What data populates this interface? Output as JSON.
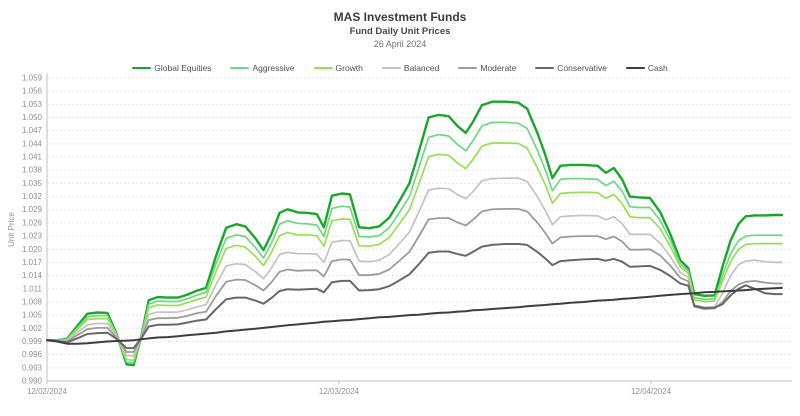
{
  "header": {
    "title": "MAS Investment Funds",
    "subtitle": "Fund Daily Unit Prices",
    "date": "26 April 2024"
  },
  "chart_data": {
    "type": "line",
    "title": "MAS Investment Funds",
    "subtitle": "Fund Daily Unit Prices",
    "date_label": "26 April 2024",
    "xlabel": "",
    "ylabel": "Unit Price",
    "x_unit": "calendar days since 12/02/2024",
    "x_range": [
      0,
      74
    ],
    "y_range": [
      0.99,
      1.059
    ],
    "y_tick_step": 0.003,
    "grid": "horizontal-dotted",
    "legend_position": "top-center",
    "x_ticks": [
      {
        "day": 0,
        "label": "12/02/2024"
      },
      {
        "day": 29,
        "label": "12/03/2024"
      },
      {
        "day": 60,
        "label": "12/04/2024"
      }
    ],
    "x": [
      0,
      1,
      2,
      3,
      4,
      5,
      6,
      6.9,
      7.9,
      8.6,
      9.4,
      10.1,
      11,
      12,
      13,
      13.9,
      14.8,
      15.8,
      16.8,
      17.8,
      18.8,
      19.7,
      20.7,
      21.5,
      22.3,
      23.1,
      23.9,
      24.9,
      25.8,
      26.8,
      27.5,
      28.3,
      29.3,
      30.1,
      31,
      32,
      33,
      34,
      35,
      36,
      36.9,
      37.9,
      38.9,
      39.9,
      40.8,
      41.6,
      42.3,
      43.2,
      44.2,
      45.5,
      46.8,
      47.7,
      48.7,
      49.5,
      50.2,
      51,
      52,
      53.3,
      54.7,
      55.5,
      56.3,
      57.1,
      57.9,
      58.8,
      59.9,
      60.9,
      61.9,
      62.9,
      63.7,
      64.3,
      65.3,
      66.3,
      67.1,
      67.9,
      68.7,
      69.4,
      70.3,
      71.3,
      72.3,
      73
    ],
    "series": [
      {
        "name": "Global Equities",
        "color": "#18a62c",
        "width": 2.4,
        "values": [
          0.9993,
          0.9993,
          0.9996,
          1.0025,
          1.0053,
          1.0056,
          1.0055,
          1.0008,
          0.9938,
          0.9936,
          1.0005,
          1.0084,
          1.0091,
          1.009,
          1.009,
          1.0096,
          1.0105,
          1.0112,
          1.0185,
          1.0249,
          1.0257,
          1.0252,
          1.0225,
          1.0198,
          1.0235,
          1.0283,
          1.0291,
          1.0284,
          1.0283,
          1.028,
          1.025,
          1.0322,
          1.0327,
          1.0325,
          1.025,
          1.0248,
          1.0252,
          1.0272,
          1.031,
          1.035,
          1.042,
          1.05,
          1.0506,
          1.0503,
          1.048,
          1.0465,
          1.049,
          1.0528,
          1.0536,
          1.0536,
          1.0534,
          1.052,
          1.0465,
          1.0415,
          1.0362,
          1.039,
          1.0392,
          1.0392,
          1.039,
          1.0374,
          1.0385,
          1.036,
          1.032,
          1.0318,
          1.0317,
          1.0285,
          1.0235,
          1.0175,
          1.0157,
          1.0098,
          1.0094,
          1.0095,
          1.016,
          1.022,
          1.0258,
          1.0275,
          1.0277,
          1.0277,
          1.0278,
          1.0278
        ]
      },
      {
        "name": "Aggressive",
        "color": "#70d884",
        "width": 1.7,
        "values": [
          0.9993,
          0.9993,
          0.9995,
          1.0021,
          1.0046,
          1.0049,
          1.0049,
          1.0006,
          0.9943,
          0.9942,
          1.0004,
          1.0075,
          1.0082,
          1.0081,
          1.0081,
          1.0087,
          1.0095,
          1.0102,
          1.0168,
          1.0225,
          1.0233,
          1.0229,
          1.0204,
          1.018,
          1.0214,
          1.0257,
          1.0265,
          1.0259,
          1.0258,
          1.0255,
          1.0229,
          1.0293,
          1.0298,
          1.0296,
          1.0229,
          1.0228,
          1.0231,
          1.0249,
          1.0284,
          1.032,
          1.0383,
          1.0455,
          1.0461,
          1.0458,
          1.0438,
          1.0424,
          1.0447,
          1.0481,
          1.0489,
          1.0489,
          1.0487,
          1.0475,
          1.0426,
          1.0381,
          1.0333,
          1.0359,
          1.0361,
          1.0361,
          1.0359,
          1.0345,
          1.0355,
          1.0333,
          1.0297,
          1.0295,
          1.0295,
          1.0266,
          1.0221,
          1.0167,
          1.0151,
          1.009,
          1.0086,
          1.0087,
          1.014,
          1.019,
          1.022,
          1.023,
          1.0232,
          1.0232,
          1.0232,
          1.0232
        ]
      },
      {
        "name": "Growth",
        "color": "#97e055",
        "width": 1.7,
        "values": [
          0.9993,
          0.9992,
          0.9994,
          1.0017,
          1.004,
          1.0042,
          1.0042,
          1.0005,
          0.9949,
          0.9947,
          1.0003,
          1.0067,
          1.0073,
          1.0072,
          1.0072,
          1.0078,
          1.0085,
          1.0091,
          1.015,
          1.0202,
          1.0209,
          1.0205,
          1.0184,
          1.0163,
          1.0193,
          1.0231,
          1.0238,
          1.0233,
          1.0233,
          1.0231,
          1.0207,
          1.0265,
          1.0269,
          1.0268,
          1.0208,
          1.0207,
          1.0211,
          1.0227,
          1.0258,
          1.029,
          1.0346,
          1.0411,
          1.0416,
          1.0414,
          1.0396,
          1.0384,
          1.0404,
          1.0435,
          1.0442,
          1.0442,
          1.0441,
          1.043,
          1.0386,
          1.0347,
          1.0305,
          1.0327,
          1.0329,
          1.033,
          1.0329,
          1.0316,
          1.0325,
          1.0305,
          1.0274,
          1.0272,
          1.0272,
          1.0247,
          1.0207,
          1.016,
          1.0145,
          1.0085,
          1.0081,
          1.0082,
          1.0128,
          1.0172,
          1.02,
          1.0211,
          1.0213,
          1.0213,
          1.0213,
          1.0213
        ]
      },
      {
        "name": "Balanced",
        "color": "#c3c3c3",
        "width": 1.7,
        "values": [
          0.9993,
          0.9992,
          0.9992,
          1.001,
          1.0028,
          1.0031,
          1.0031,
          1.0002,
          0.9958,
          0.9957,
          1.0001,
          1.0052,
          1.0057,
          1.0057,
          1.0057,
          1.0062,
          1.0068,
          1.0074,
          1.012,
          1.0162,
          1.0167,
          1.0165,
          1.0149,
          1.0133,
          1.0157,
          1.0188,
          1.0193,
          1.019,
          1.019,
          1.0189,
          1.017,
          1.0216,
          1.022,
          1.0219,
          1.0173,
          1.0172,
          1.0175,
          1.0188,
          1.0213,
          1.0239,
          1.0283,
          1.0335,
          1.0339,
          1.0338,
          1.0324,
          1.0315,
          1.0331,
          1.0356,
          1.0361,
          1.0362,
          1.0362,
          1.0354,
          1.032,
          1.0288,
          1.0256,
          1.0274,
          1.0276,
          1.0277,
          1.0276,
          1.0267,
          1.0274,
          1.0259,
          1.0234,
          1.0234,
          1.0234,
          1.0214,
          1.0184,
          1.0147,
          1.0136,
          1.0073,
          1.0068,
          1.0069,
          1.01,
          1.014,
          1.0165,
          1.0173,
          1.0175,
          1.0172,
          1.017,
          1.017
        ]
      },
      {
        "name": "Moderate",
        "color": "#9c9c9c",
        "width": 1.8,
        "values": [
          0.9993,
          0.9991,
          0.999,
          1.0004,
          1.0018,
          1.0021,
          1.0021,
          0.9999,
          0.9966,
          0.9966,
          1.0,
          1.0039,
          1.0043,
          1.0043,
          1.0044,
          1.0048,
          1.0054,
          1.0058,
          1.0094,
          1.0126,
          1.0131,
          1.013,
          1.0118,
          1.0106,
          1.0125,
          1.0149,
          1.0154,
          1.0151,
          1.0152,
          1.0152,
          1.0138,
          1.0173,
          1.0177,
          1.0176,
          1.0141,
          1.0141,
          1.0144,
          1.0154,
          1.0174,
          1.0194,
          1.0228,
          1.0268,
          1.0271,
          1.0271,
          1.0261,
          1.0254,
          1.0267,
          1.0286,
          1.0291,
          1.0292,
          1.0292,
          1.0286,
          1.0261,
          1.0237,
          1.0213,
          1.0227,
          1.0229,
          1.023,
          1.023,
          1.0223,
          1.0229,
          1.0218,
          1.0199,
          1.0199,
          1.02,
          1.0186,
          1.0163,
          1.0135,
          1.0127,
          1.0069,
          1.0064,
          1.0065,
          1.008,
          1.0105,
          1.012,
          1.0126,
          1.0128,
          1.0124,
          1.0122,
          1.0122
        ]
      },
      {
        "name": "Conservative",
        "color": "#686868",
        "width": 2,
        "values": [
          0.9993,
          0.9991,
          0.9988,
          0.9997,
          1.0007,
          1.0009,
          1.001,
          0.9996,
          0.9975,
          0.9975,
          0.9998,
          1.0024,
          1.0028,
          1.0028,
          1.0029,
          1.0033,
          1.0037,
          1.004,
          1.0064,
          1.0086,
          1.009,
          1.009,
          1.0083,
          1.0076,
          1.0089,
          1.0105,
          1.0109,
          1.0108,
          1.0109,
          1.011,
          1.0102,
          1.0125,
          1.0128,
          1.0128,
          1.0106,
          1.0107,
          1.0109,
          1.0116,
          1.0129,
          1.0143,
          1.0165,
          1.0192,
          1.0195,
          1.0195,
          1.0189,
          1.0185,
          1.0194,
          1.0206,
          1.021,
          1.0212,
          1.0212,
          1.021,
          1.0194,
          1.0179,
          1.0164,
          1.0173,
          1.0175,
          1.0177,
          1.0178,
          1.0174,
          1.0178,
          1.0172,
          1.016,
          1.0161,
          1.0162,
          1.0153,
          1.0139,
          1.0122,
          1.0117,
          1.0071,
          1.0066,
          1.0067,
          1.0075,
          1.0095,
          1.011,
          1.0118,
          1.011,
          1.01,
          1.0098,
          1.0098
        ]
      },
      {
        "name": "Cash",
        "color": "#3e3e3e",
        "width": 2,
        "values": [
          0.9993,
          0.999,
          0.9985,
          0.9985,
          0.9986,
          0.9988,
          0.999,
          0.9991,
          0.9992,
          0.9993,
          0.9995,
          0.9997,
          0.9999,
          1.0,
          1.0002,
          1.0004,
          1.0006,
          1.0008,
          1.001,
          1.0013,
          1.0015,
          1.0017,
          1.0019,
          1.0021,
          1.0023,
          1.0025,
          1.0027,
          1.0029,
          1.0031,
          1.0033,
          1.0035,
          1.0036,
          1.0038,
          1.0039,
          1.0041,
          1.0043,
          1.0045,
          1.0046,
          1.0048,
          1.005,
          1.0051,
          1.0053,
          1.0055,
          1.0056,
          1.0058,
          1.0059,
          1.0061,
          1.0062,
          1.0064,
          1.0066,
          1.0068,
          1.007,
          1.0072,
          1.0073,
          1.0075,
          1.0076,
          1.0078,
          1.008,
          1.0083,
          1.0084,
          1.0085,
          1.0087,
          1.0088,
          1.009,
          1.0092,
          1.0094,
          1.0096,
          1.0098,
          1.0099,
          1.01,
          1.0102,
          1.0103,
          1.0104,
          1.0105,
          1.0106,
          1.0107,
          1.0109,
          1.011,
          1.0111,
          1.0112
        ]
      }
    ],
    "style": {
      "grid_color": "#dedede",
      "axis_color": "#c0c0c0",
      "tick_label_color": "#909090",
      "background": "#ffffff"
    }
  }
}
